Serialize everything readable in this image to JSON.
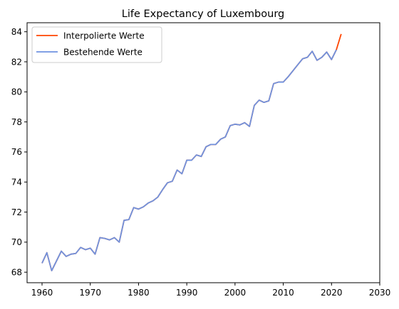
{
  "chart_data": {
    "type": "line",
    "title": "Life Expectancy of Luxembourg",
    "xlabel": "",
    "ylabel": "",
    "xlim": [
      1956.9,
      2030
    ],
    "ylim": [
      67.3,
      84.6
    ],
    "xticks": [
      1960,
      1970,
      1980,
      1990,
      2000,
      2010,
      2020,
      2030
    ],
    "yticks": [
      68,
      70,
      72,
      74,
      76,
      78,
      80,
      82,
      84
    ],
    "grid": false,
    "legend_position": "top-left",
    "series": [
      {
        "name": "Interpolierte Werte",
        "color": "#ff4500",
        "x": [
          1960,
          1961,
          1962,
          1963,
          1964,
          1965,
          1966,
          1967,
          1968,
          1969,
          1970,
          1971,
          1972,
          1973,
          1974,
          1975,
          1976,
          1977,
          1978,
          1979,
          1980,
          1981,
          1982,
          1983,
          1984,
          1985,
          1986,
          1987,
          1988,
          1989,
          1990,
          1991,
          1992,
          1993,
          1994,
          1995,
          1996,
          1997,
          1998,
          1999,
          2000,
          2001,
          2002,
          2003,
          2004,
          2005,
          2006,
          2007,
          2008,
          2009,
          2010,
          2011,
          2012,
          2013,
          2014,
          2015,
          2016,
          2017,
          2018,
          2019,
          2020,
          2021,
          2022
        ],
        "y": [
          68.6,
          69.3,
          68.1,
          68.75,
          69.4,
          69.05,
          69.2,
          69.25,
          69.65,
          69.5,
          69.6,
          69.2,
          70.3,
          70.25,
          70.15,
          70.3,
          70.0,
          71.45,
          71.5,
          72.3,
          72.2,
          72.35,
          72.6,
          72.75,
          73.0,
          73.5,
          73.95,
          74.05,
          74.8,
          74.55,
          75.45,
          75.45,
          75.8,
          75.7,
          76.35,
          76.5,
          76.5,
          76.85,
          77.0,
          77.75,
          77.85,
          77.8,
          77.95,
          77.7,
          79.1,
          79.45,
          79.3,
          79.4,
          80.55,
          80.65,
          80.65,
          81.0,
          81.4,
          81.8,
          82.2,
          82.3,
          82.7,
          82.1,
          82.3,
          82.65,
          82.15,
          82.8,
          83.85
        ]
      },
      {
        "name": "Bestehende Werte",
        "color": "#6f93e0",
        "x": [
          1960,
          1961,
          1962,
          1963,
          1964,
          1965,
          1966,
          1967,
          1968,
          1969,
          1970,
          1971,
          1972,
          1973,
          1974,
          1975,
          1976,
          1977,
          1978,
          1979,
          1980,
          1981,
          1982,
          1983,
          1984,
          1985,
          1986,
          1987,
          1988,
          1989,
          1990,
          1991,
          1992,
          1993,
          1994,
          1995,
          1996,
          1997,
          1998,
          1999,
          2000,
          2001,
          2002,
          2003,
          2004,
          2005,
          2006,
          2007,
          2008,
          2009,
          2010,
          2011,
          2012,
          2013,
          2014,
          2015,
          2016,
          2017,
          2018,
          2019,
          2020,
          2021
        ],
        "y": [
          68.6,
          69.3,
          68.1,
          68.75,
          69.4,
          69.05,
          69.2,
          69.25,
          69.65,
          69.5,
          69.6,
          69.2,
          70.3,
          70.25,
          70.15,
          70.3,
          70.0,
          71.45,
          71.5,
          72.3,
          72.2,
          72.35,
          72.6,
          72.75,
          73.0,
          73.5,
          73.95,
          74.05,
          74.8,
          74.55,
          75.45,
          75.45,
          75.8,
          75.7,
          76.35,
          76.5,
          76.5,
          76.85,
          77.0,
          77.75,
          77.85,
          77.8,
          77.95,
          77.7,
          79.1,
          79.45,
          79.3,
          79.4,
          80.55,
          80.65,
          80.65,
          81.0,
          81.4,
          81.8,
          82.2,
          82.3,
          82.7,
          82.1,
          82.3,
          82.65,
          82.15,
          82.8
        ]
      }
    ]
  }
}
